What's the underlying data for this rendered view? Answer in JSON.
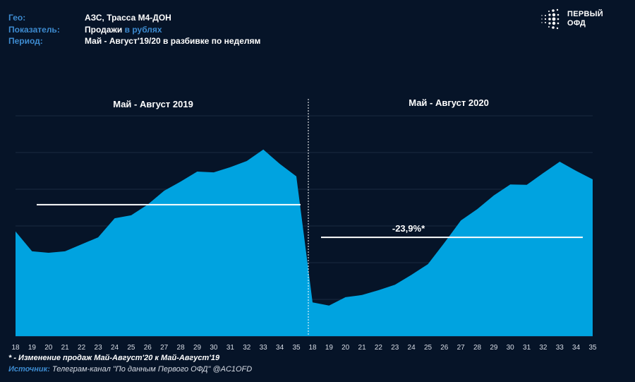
{
  "header": {
    "rows": [
      {
        "key": "Гео:",
        "value": "АЗС, Трасса М4-ДОН",
        "highlight": ""
      },
      {
        "key": "Показатель:",
        "value": "Продажи ",
        "highlight": "в рублях"
      },
      {
        "key": "Период:",
        "value": "Май - Август'19/20 в разбивке по неделям",
        "highlight": ""
      }
    ]
  },
  "logo": {
    "line1": "ПЕРВЫЙ",
    "line2": "ОФД",
    "icon": "dots-logo-icon"
  },
  "colors": {
    "background": "#061428",
    "area": "#00a3e0",
    "label_accent": "#3d8bd0",
    "avg_line": "#ffffff",
    "grid": "#1a2a40"
  },
  "chart_data": {
    "type": "area",
    "title": "",
    "xlabel": "",
    "ylabel": "",
    "y_unit": "relative (no y-axis labels shown)",
    "ylim": [
      0,
      6
    ],
    "grid": true,
    "legend": "none",
    "panels": [
      {
        "name": "Май - Август 2019",
        "weeks": [
          "18",
          "19",
          "20",
          "21",
          "22",
          "23",
          "24",
          "25",
          "26",
          "27",
          "28",
          "29",
          "30",
          "31",
          "32",
          "33",
          "34",
          "35"
        ],
        "values": [
          2.85,
          2.31,
          2.27,
          2.31,
          2.5,
          2.69,
          3.21,
          3.29,
          3.58,
          3.96,
          4.21,
          4.48,
          4.46,
          4.6,
          4.77,
          5.08,
          4.69,
          4.35
        ],
        "avg_line": 3.58,
        "annotation": ""
      },
      {
        "name": "Май - Август 2020",
        "weeks": [
          "18",
          "19",
          "20",
          "21",
          "22",
          "23",
          "24",
          "25",
          "26",
          "27",
          "28",
          "29",
          "30",
          "31",
          "32",
          "33",
          "34",
          "35"
        ],
        "values": [
          0.92,
          0.83,
          1.06,
          1.12,
          1.25,
          1.4,
          1.67,
          1.96,
          2.54,
          3.15,
          3.46,
          3.83,
          4.13,
          4.12,
          4.44,
          4.75,
          4.5,
          4.27
        ],
        "avg_line": 2.69,
        "annotation": "-23,9%*"
      }
    ]
  },
  "footer": {
    "note": "* - Изменение продаж Май-Август'20 к Май-Август'19",
    "source_label": "Источник:",
    "source_text": " Телеграм-канал \"По данным Первого ОФД\" @AC1OFD"
  }
}
